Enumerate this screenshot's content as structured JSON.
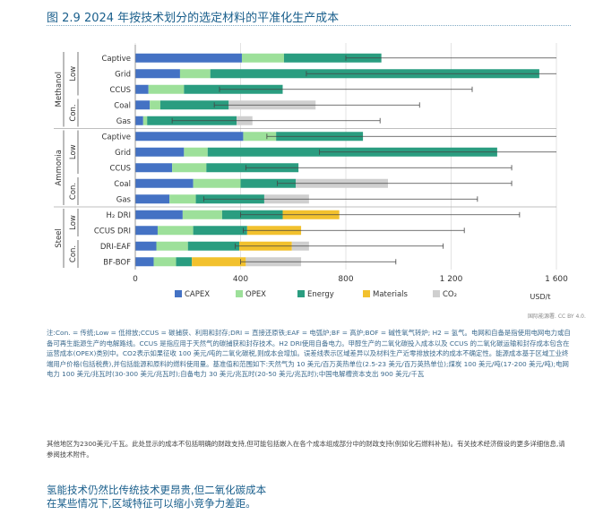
{
  "title": "图 2.9 2024 年按技术划分的选定材料的平准化生产成本",
  "source_credit": "国际能源署. CC BY 4.0.",
  "note_text": "注:Con. = 传统;Low = 低排放;CCUS = 碳捕获、利用和封存;DRI = 直接还原铁;EAF = 电弧炉;BF = 高炉;BOF = 碱性氧气转炉; H2 = 氢气。电网和自备是指使用电网电力或自备可再生能源生产的电解路线。CCUS 是指应用于天然气的碳捕获和封存技术。H2 DRI使用自备电力。甲醇生产的二氧化碳投入成本以及 CCUS 的二氧化碳运输和封存成本包含在运营成本(OPEX)类别中。CO2表示如果征收 100 美元/吨的二氧化碳税,则成本会增加。误差线表示区域差异以及材料生产近零排放技术的成本不确定性。能源成本基于区域工业终端用户价格(包括税费),并包括能源和原料的燃料使用量。基准值和范围如下:天然气为 10 美元/百万英热单位(2.5-23 美元/百万英热单位);煤炭 100 美元/吨(17-200 美元/吨);电网电力 100 美元/兆瓦时(30-300 美元/兆瓦时);自备电力 30 美元/兆瓦时(20-50 美元/兆瓦时);中国电解槽资本支出 900 美元/千瓦",
  "footnote_text": "其他地区为2300美元/千瓦。此处显示的成本不包括明确的财政支持,但可能包括嵌入在各个成本组成部分中的财政支持(例如化石燃料补贴)。有关技术经济假设的更多详细信息,请参阅技术附件。",
  "headline": [
    "氢能技术仍然比传统技术更昂贵,但二氧化碳成本",
    "在某些情况下,区域特征可以缩小竞争力差距。"
  ],
  "colors": {
    "CAPEX": "#4472c4",
    "OPEX": "#9de09a",
    "Energy": "#2a9d80",
    "Materials": "#f2c12e",
    "CO2": "#cfcfcf"
  },
  "chart_data": {
    "type": "bar",
    "orientation": "horizontal",
    "stacked": true,
    "xlim": [
      0,
      1600
    ],
    "xticks": [
      0,
      400,
      800,
      1200,
      1600
    ],
    "xtick_labels": [
      "0",
      "400",
      "800",
      "1 200",
      "1 600"
    ],
    "xunit": "USD/t",
    "grid": true,
    "legend_position": "bottom",
    "legend": [
      "CAPEX",
      "OPEX",
      "Energy",
      "Materials",
      "CO2"
    ],
    "legend_labels": [
      "CAPEX",
      "OPEX",
      "Energy",
      "Materials",
      "CO₂"
    ],
    "groups": [
      {
        "label": "Methanol",
        "subgroups": [
          {
            "label": "Low",
            "bars": [
              {
                "label": "Captive",
                "values": {
                  "CAPEX": 405,
                  "OPEX": 160,
                  "Energy": 370,
                  "Materials": 0,
                  "CO2": 0
                },
                "error": [
                  800,
                  1600
                ]
              },
              {
                "label": "Grid",
                "values": {
                  "CAPEX": 170,
                  "OPEX": 115,
                  "Energy": 1250,
                  "Materials": 0,
                  "CO2": 0
                },
                "error": [
                  650,
                  1600
                ]
              },
              {
                "label": "CCUS",
                "values": {
                  "CAPEX": 50,
                  "OPEX": 135,
                  "Energy": 375,
                  "Materials": 0,
                  "CO2": 0
                },
                "error": [
                  320,
                  1280
                ]
              }
            ]
          },
          {
            "label": "Con.",
            "bars": [
              {
                "label": "Coal",
                "values": {
                  "CAPEX": 55,
                  "OPEX": 40,
                  "Energy": 260,
                  "Materials": 0,
                  "CO2": 330
                },
                "error": [
                  300,
                  1080
                ]
              },
              {
                "label": "Gas",
                "values": {
                  "CAPEX": 30,
                  "OPEX": 15,
                  "Energy": 340,
                  "Materials": 0,
                  "CO2": 60
                },
                "error": [
                  140,
                  930
                ]
              }
            ]
          }
        ]
      },
      {
        "label": "Ammonia",
        "subgroups": [
          {
            "label": "Low",
            "bars": [
              {
                "label": "Captive",
                "values": {
                  "CAPEX": 410,
                  "OPEX": 125,
                  "Energy": 330,
                  "Materials": 0,
                  "CO2": 0
                },
                "error": [
                  500,
                  1600
                ]
              },
              {
                "label": "Grid",
                "values": {
                  "CAPEX": 185,
                  "OPEX": 90,
                  "Energy": 1100,
                  "Materials": 0,
                  "CO2": 0
                },
                "error": [
                  700,
                  1600
                ]
              },
              {
                "label": "CCUS",
                "values": {
                  "CAPEX": 140,
                  "OPEX": 130,
                  "Energy": 350,
                  "Materials": 0,
                  "CO2": 0
                },
                "error": [
                  420,
                  1430
                ]
              }
            ]
          },
          {
            "label": "Con.",
            "bars": [
              {
                "label": "Coal",
                "values": {
                  "CAPEX": 220,
                  "OPEX": 180,
                  "Energy": 210,
                  "Materials": 0,
                  "CO2": 350
                },
                "error": [
                  540,
                  1430
                ]
              },
              {
                "label": "Gas",
                "values": {
                  "CAPEX": 130,
                  "OPEX": 100,
                  "Energy": 260,
                  "Materials": 0,
                  "CO2": 170
                },
                "error": [
                  260,
                  1300
                ]
              }
            ]
          }
        ]
      },
      {
        "label": "Steel",
        "subgroups": [
          {
            "label": "Low",
            "bars": [
              {
                "label": "H₂ DRI",
                "values": {
                  "CAPEX": 180,
                  "OPEX": 150,
                  "Energy": 230,
                  "Materials": 215,
                  "CO2": 0
                },
                "error": [
                  400,
                  1460
                ]
              },
              {
                "label": "CCUS DRI",
                "values": {
                  "CAPEX": 85,
                  "OPEX": 135,
                  "Energy": 205,
                  "Materials": 205,
                  "CO2": 0
                },
                "error": [
                  410,
                  1250
                ]
              }
            ]
          },
          {
            "label": "Con.",
            "bars": [
              {
                "label": "DRI-EAF",
                "values": {
                  "CAPEX": 80,
                  "OPEX": 120,
                  "Energy": 195,
                  "Materials": 200,
                  "CO2": 65
                },
                "error": [
                  380,
                  1170
                ]
              },
              {
                "label": "BF-BOF",
                "values": {
                  "CAPEX": 70,
                  "OPEX": 85,
                  "Energy": 60,
                  "Materials": 205,
                  "CO2": 210
                },
                "error": [
                  400,
                  990
                ]
              }
            ]
          }
        ]
      }
    ]
  }
}
